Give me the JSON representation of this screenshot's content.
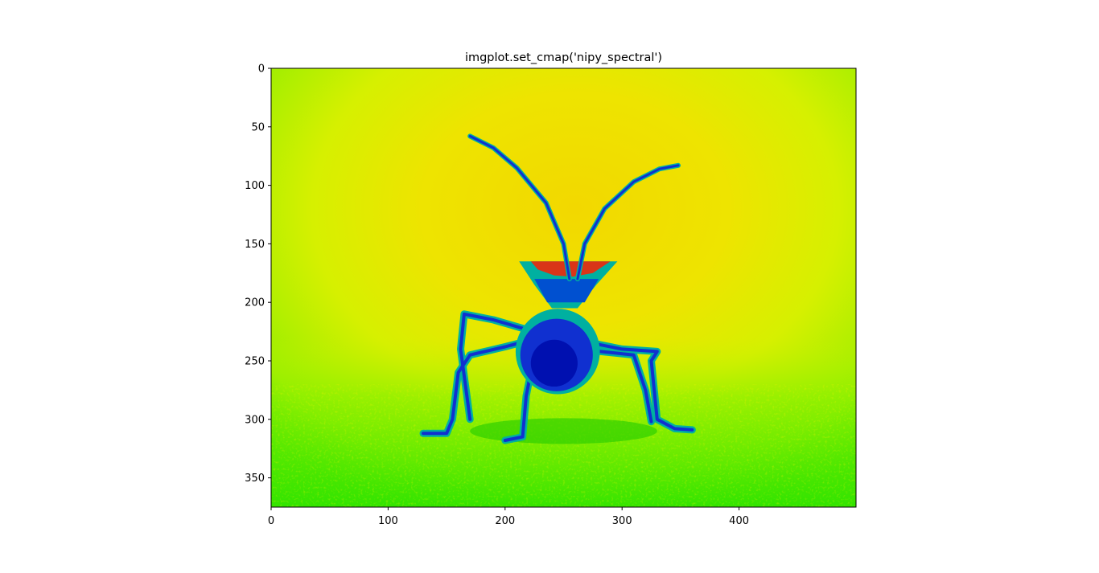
{
  "chart_data": {
    "type": "heatmap",
    "title": "imgplot.set_cmap('nipy_spectral')",
    "colormap": "nipy_spectral",
    "xlabel": "",
    "ylabel": "",
    "xlim": [
      0,
      500
    ],
    "ylim": [
      375,
      0
    ],
    "x_ticks": [
      0,
      100,
      200,
      300,
      400
    ],
    "y_ticks": [
      0,
      50,
      100,
      150,
      200,
      250,
      300,
      350
    ],
    "grid": false,
    "legend": "none",
    "image_subject": "insect (leaf-footed bug) facing the camera with long antennae, standing on a textured surface",
    "colors": {
      "background_top": "#e6f000",
      "background_center": "#f2dc00",
      "edges": "#33e600",
      "ground": "#66ee00",
      "insect_body": "#1030d0",
      "insect_dark": "#0010b0",
      "insect_outline": "#00b0a0",
      "highlight": "#ff2000"
    }
  }
}
